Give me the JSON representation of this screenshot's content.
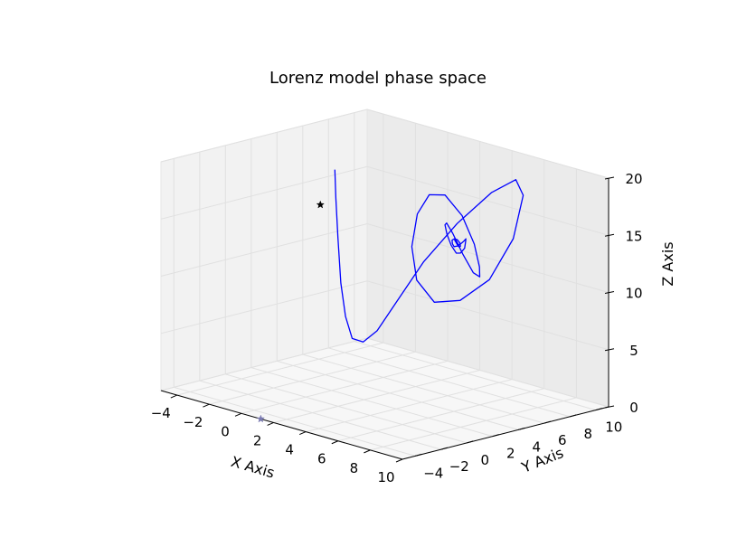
{
  "chart_data": {
    "type": "line",
    "projection": "3d",
    "title": "Lorenz model phase space",
    "xlabel": "X Axis",
    "ylabel": "Y Axis",
    "zlabel": "Z Axis",
    "xlim": [
      -5,
      10
    ],
    "ylim": [
      -5,
      11
    ],
    "zlim": [
      0,
      20
    ],
    "xticks": [
      -4,
      -2,
      0,
      2,
      4,
      6,
      8,
      10
    ],
    "yticks": [
      -4,
      -2,
      0,
      2,
      4,
      6,
      8,
      10
    ],
    "zticks": [
      0,
      5,
      10,
      15,
      20
    ],
    "grid": true,
    "series": [
      {
        "color": "#0000ff",
        "x": [
          1.0,
          1.02,
          1.03,
          1.05,
          1.1,
          1.2,
          1.4,
          1.7,
          2.2,
          3.0,
          4.2,
          5.6,
          6.8,
          7.5,
          7.6,
          7.0,
          5.9,
          4.7,
          3.6,
          2.9,
          2.6,
          2.7,
          3.2,
          4.1,
          5.1,
          5.9,
          6.4,
          6.4,
          5.9,
          5.2,
          4.5,
          4.0,
          3.8,
          3.9,
          4.3,
          4.8,
          5.3,
          5.6,
          5.7,
          5.5,
          5.1,
          4.7,
          4.4,
          4.3,
          4.4,
          4.7,
          5.0,
          5.2,
          5.2,
          5.0,
          4.8,
          4.65,
          4.6,
          4.7,
          4.85,
          4.95,
          4.95,
          4.85,
          4.75
        ],
        "y": [
          1.0,
          1.05,
          1.2,
          1.4,
          1.7,
          2.1,
          2.7,
          3.4,
          4.3,
          5.4,
          6.5,
          7.4,
          7.8,
          7.5,
          6.6,
          5.5,
          4.6,
          4.1,
          4.1,
          4.6,
          5.4,
          6.2,
          6.8,
          7.0,
          6.7,
          6.1,
          5.5,
          5.0,
          4.8,
          4.9,
          5.3,
          5.8,
          6.2,
          6.4,
          6.3,
          6.0,
          5.7,
          5.4,
          5.3,
          5.4,
          5.6,
          5.9,
          6.0,
          6.0,
          5.85,
          5.65,
          5.5,
          5.45,
          5.5,
          5.65,
          5.8,
          5.85,
          5.8,
          5.7,
          5.6,
          5.6,
          5.65,
          5.7,
          5.72
        ],
        "z": [
          20.0,
          17.5,
          14.0,
          10.0,
          7.0,
          5.0,
          4.6,
          5.5,
          8.0,
          11.5,
          15.0,
          18.0,
          19.5,
          18.5,
          15.0,
          11.5,
          9.5,
          9.0,
          10.5,
          13.0,
          15.5,
          17.0,
          17.0,
          15.5,
          13.5,
          12.0,
          11.5,
          12.0,
          13.5,
          15.0,
          15.5,
          15.0,
          14.0,
          13.0,
          12.5,
          12.8,
          13.5,
          14.3,
          14.6,
          14.3,
          13.8,
          13.4,
          13.2,
          13.4,
          13.8,
          14.1,
          14.2,
          14.0,
          13.7,
          13.5,
          13.5,
          13.7,
          13.9,
          14.0,
          13.9,
          13.8,
          13.7,
          13.75,
          13.8
        ]
      }
    ],
    "markers": [
      {
        "x": -5,
        "y": 7.37,
        "z": 12.7,
        "symbol": "star",
        "color": "#000000"
      },
      {
        "x": 1.2,
        "y": -5,
        "z": 0,
        "symbol": "star",
        "color": "#7a7ab0"
      }
    ]
  }
}
